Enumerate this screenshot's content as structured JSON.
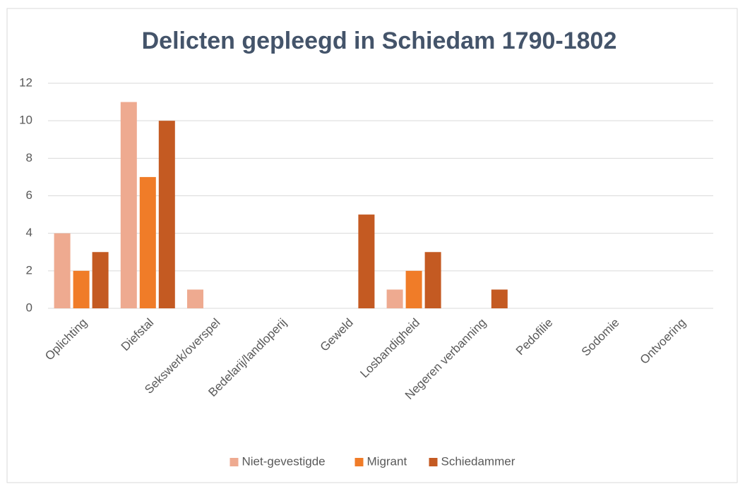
{
  "chart_data": {
    "type": "bar",
    "title": "Delicten gepleegd in Schiedam 1790-1802",
    "categories": [
      "Oplichting",
      "Diefstal",
      "Sekswerk/overspel",
      "Bedelarij/landloperij",
      "Geweld",
      "Losbandigheid",
      "Negeren verbanning",
      "Pedofilie",
      "Sodomie",
      "Ontvoering"
    ],
    "series": [
      {
        "name": "Niet-gevestigde",
        "color": "#eeaa90",
        "values": [
          4,
          11,
          1,
          0,
          0,
          1,
          0,
          0,
          0,
          0
        ]
      },
      {
        "name": "Migrant",
        "color": "#f07c28",
        "values": [
          2,
          7,
          0,
          0,
          0,
          2,
          0,
          0,
          0,
          0
        ]
      },
      {
        "name": "Schiedammer",
        "color": "#c45a22",
        "values": [
          3,
          10,
          0,
          0,
          5,
          3,
          1,
          0,
          0,
          0
        ]
      }
    ],
    "ylim": [
      0,
      12
    ],
    "yticks": [
      0,
      2,
      4,
      6,
      8,
      10,
      12
    ],
    "grid": true,
    "legend": "bottom"
  }
}
